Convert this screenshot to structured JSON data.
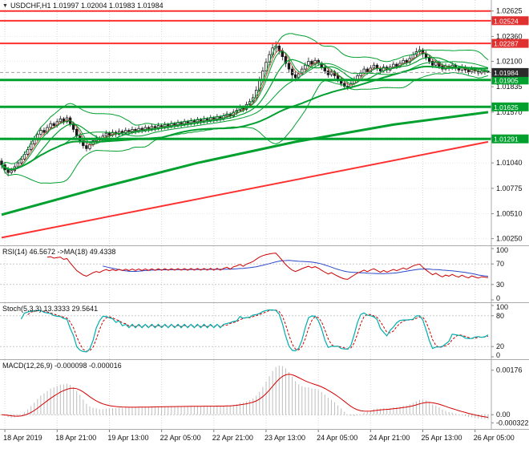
{
  "window": {
    "title": "USDCHF,H1 1.01997 1.02004 1.01983 1.01984",
    "dropdown_icon": "▼"
  },
  "colors": {
    "grid": "#D8D8D8",
    "border": "#ABABAB",
    "text": "#111111",
    "candle": "#1A1A1A",
    "bull_fill": "#FFFFFF",
    "bear_fill": "#1A1A1A",
    "ma_green": "#00A02E",
    "fast_red": "#C03A2B",
    "level_red": "#FF3030",
    "badge_red": "#E03030",
    "badge_green": "#00A02E",
    "badge_current": "#2B2B2B",
    "current_line": "#A0A0A0",
    "rsi_line": "#CC0000",
    "rsi_ma": "#2B48C8",
    "stoch_k": "#00AEAE",
    "stoch_d": "#CC0000",
    "macd_hist": "#BDBDBD",
    "macd_signal": "#D40000"
  },
  "time_axis": {
    "labels": [
      "18 Apr 2019",
      "18 Apr 21:00",
      "19 Apr 13:00",
      "22 Apr 05:00",
      "22 Apr 21:00",
      "23 Apr 13:00",
      "24 Apr 05:00",
      "24 Apr 21:00",
      "25 Apr 13:00",
      "26 Apr 05:00"
    ],
    "first_bar": 1,
    "bar_step": 16
  },
  "chart_data": {
    "type": "candlestick",
    "symbol": "USDCHF",
    "timeframe": "H1",
    "ohlc_display": {
      "open": "1.01997",
      "high": "1.02004",
      "low": "1.01983",
      "close": "1.01984"
    },
    "main": {
      "ylim": [
        1.0018,
        1.0274
      ],
      "grid_labels": [
        "1.02625",
        "1.02360",
        "1.02100",
        "1.01835",
        "1.01570",
        "1.01305",
        "1.01040",
        "1.00775",
        "1.00510",
        "1.00250"
      ],
      "current_price": 1.01984,
      "hlines": [
        {
          "value": 1.02625,
          "color": "#FF3030",
          "width": 2
        },
        {
          "value": 1.02524,
          "color": "#FF3030",
          "width": 2
        },
        {
          "value": 1.02287,
          "color": "#FF3030",
          "width": 2
        },
        {
          "value": 1.01905,
          "color": "#00A02E",
          "width": 3
        },
        {
          "value": 1.01625,
          "color": "#00A02E",
          "width": 3
        },
        {
          "value": 1.01291,
          "color": "#00A02E",
          "width": 3
        }
      ],
      "badges": [
        {
          "label": "1.02524",
          "color": "#E03030"
        },
        {
          "label": "1.02287",
          "color": "#E03030"
        },
        {
          "label": "1.01905",
          "color": "#00A02E"
        },
        {
          "label": "1.01625",
          "color": "#00A02E"
        },
        {
          "label": "1.01291",
          "color": "#00A02E"
        },
        {
          "label": "1.01984",
          "color": "#2B2B2B"
        }
      ],
      "trendlines": [
        {
          "name": "long-term-ma",
          "color": "#00A02E",
          "width": 3,
          "points": [
            [
              0,
              1.005
            ],
            [
              30,
              1.0078
            ],
            [
              60,
              1.0104
            ],
            [
              90,
              1.0126
            ],
            [
              120,
              1.0144
            ],
            [
              149,
              1.0157
            ]
          ]
        },
        {
          "name": "ascending-trendline",
          "color": "#FF3030",
          "width": 2,
          "points": [
            [
              0,
              1.0026
            ],
            [
              149,
              1.0126
            ]
          ]
        }
      ],
      "overlays": {
        "sma_fast": [
          5,
          10
        ],
        "sma_slow": 50,
        "bollinger": [
          20,
          2
        ],
        "fast_red_sma": 4
      },
      "candles": [
        [
          1.0106,
          1.0109,
          1.0098,
          1.0102
        ],
        [
          1.0102,
          1.0105,
          1.0093,
          1.0097
        ],
        [
          1.0097,
          1.01,
          1.009,
          1.0094
        ],
        [
          1.0094,
          1.0099,
          1.0092,
          1.0096
        ],
        [
          1.0096,
          1.0103,
          1.0094,
          1.01
        ],
        [
          1.01,
          1.0107,
          1.0098,
          1.0104
        ],
        [
          1.0104,
          1.0111,
          1.0102,
          1.0108
        ],
        [
          1.0108,
          1.0116,
          1.0106,
          1.0113
        ],
        [
          1.0113,
          1.0121,
          1.0111,
          1.0118
        ],
        [
          1.0118,
          1.0127,
          1.0116,
          1.0124
        ],
        [
          1.0124,
          1.0132,
          1.0122,
          1.0129
        ],
        [
          1.0129,
          1.0137,
          1.0127,
          1.0134
        ],
        [
          1.0134,
          1.0141,
          1.0132,
          1.0138
        ],
        [
          1.0138,
          1.0141,
          1.0133,
          1.0136
        ],
        [
          1.0136,
          1.0144,
          1.0134,
          1.0141
        ],
        [
          1.0141,
          1.0148,
          1.0139,
          1.0145
        ],
        [
          1.0145,
          1.0147,
          1.014,
          1.0143
        ],
        [
          1.0143,
          1.015,
          1.0141,
          1.0147
        ],
        [
          1.0147,
          1.0153,
          1.0145,
          1.015
        ],
        [
          1.015,
          1.0152,
          1.0144,
          1.0147
        ],
        [
          1.0147,
          1.0154,
          1.0145,
          1.0151
        ],
        [
          1.0151,
          1.0153,
          1.0142,
          1.0145
        ],
        [
          1.0145,
          1.0147,
          1.0136,
          1.0139
        ],
        [
          1.0139,
          1.0141,
          1.0129,
          1.0132
        ],
        [
          1.0132,
          1.0135,
          1.0124,
          1.0127
        ],
        [
          1.0127,
          1.013,
          1.0119,
          1.0122
        ],
        [
          1.0122,
          1.0125,
          1.0116,
          1.0119
        ],
        [
          1.0119,
          1.0126,
          1.0117,
          1.0123
        ],
        [
          1.0123,
          1.013,
          1.0121,
          1.0127
        ],
        [
          1.0127,
          1.0133,
          1.0125,
          1.013
        ],
        [
          1.013,
          1.0132,
          1.0125,
          1.0128
        ],
        [
          1.0128,
          1.0135,
          1.0126,
          1.0132
        ],
        [
          1.0132,
          1.0138,
          1.013,
          1.0135
        ],
        [
          1.0135,
          1.0137,
          1.013,
          1.0133
        ],
        [
          1.0133,
          1.0139,
          1.0131,
          1.0136
        ],
        [
          1.0136,
          1.0138,
          1.0131,
          1.0134
        ],
        [
          1.0134,
          1.014,
          1.0132,
          1.0137
        ],
        [
          1.0137,
          1.0139,
          1.0132,
          1.0135
        ],
        [
          1.0135,
          1.0141,
          1.0133,
          1.0138
        ],
        [
          1.0138,
          1.014,
          1.0133,
          1.0136
        ],
        [
          1.0136,
          1.0142,
          1.0134,
          1.0139
        ],
        [
          1.0139,
          1.0141,
          1.0134,
          1.0137
        ],
        [
          1.0137,
          1.0143,
          1.0135,
          1.014
        ],
        [
          1.014,
          1.0142,
          1.0135,
          1.0138
        ],
        [
          1.0138,
          1.0144,
          1.0136,
          1.0141
        ],
        [
          1.0141,
          1.0143,
          1.0136,
          1.0139
        ],
        [
          1.0139,
          1.0145,
          1.0137,
          1.0142
        ],
        [
          1.0142,
          1.0144,
          1.0137,
          1.014
        ],
        [
          1.014,
          1.0146,
          1.0138,
          1.0143
        ],
        [
          1.0143,
          1.0145,
          1.0138,
          1.0141
        ],
        [
          1.0141,
          1.0147,
          1.0139,
          1.0144
        ],
        [
          1.0144,
          1.0146,
          1.0139,
          1.0142
        ],
        [
          1.0142,
          1.0148,
          1.014,
          1.0145
        ],
        [
          1.0145,
          1.0147,
          1.014,
          1.0143
        ],
        [
          1.0143,
          1.0149,
          1.0141,
          1.0146
        ],
        [
          1.0146,
          1.0148,
          1.0141,
          1.0144
        ],
        [
          1.0144,
          1.015,
          1.0142,
          1.0147
        ],
        [
          1.0147,
          1.0149,
          1.0142,
          1.0145
        ],
        [
          1.0145,
          1.0151,
          1.0143,
          1.0148
        ],
        [
          1.0148,
          1.015,
          1.0143,
          1.0146
        ],
        [
          1.0146,
          1.0152,
          1.0144,
          1.0149
        ],
        [
          1.0149,
          1.0151,
          1.0144,
          1.0147
        ],
        [
          1.0147,
          1.0153,
          1.0145,
          1.015
        ],
        [
          1.015,
          1.0152,
          1.0145,
          1.0148
        ],
        [
          1.0148,
          1.0154,
          1.0146,
          1.0151
        ],
        [
          1.0151,
          1.0153,
          1.0146,
          1.0149
        ],
        [
          1.0149,
          1.0155,
          1.0147,
          1.0152
        ],
        [
          1.0152,
          1.0154,
          1.0147,
          1.015
        ],
        [
          1.015,
          1.0156,
          1.0148,
          1.0153
        ],
        [
          1.0153,
          1.0158,
          1.015,
          1.0155
        ],
        [
          1.0155,
          1.0157,
          1.015,
          1.0153
        ],
        [
          1.0153,
          1.016,
          1.0151,
          1.0157
        ],
        [
          1.0157,
          1.0162,
          1.0154,
          1.0159
        ],
        [
          1.0159,
          1.0165,
          1.0157,
          1.0162
        ],
        [
          1.0162,
          1.0164,
          1.0157,
          1.016
        ],
        [
          1.016,
          1.0168,
          1.0158,
          1.0165
        ],
        [
          1.0165,
          1.0171,
          1.0162,
          1.0168
        ],
        [
          1.0168,
          1.0176,
          1.0166,
          1.0172
        ],
        [
          1.0172,
          1.0184,
          1.017,
          1.018
        ],
        [
          1.018,
          1.0194,
          1.0178,
          1.019
        ],
        [
          1.019,
          1.0204,
          1.0188,
          1.02
        ],
        [
          1.02,
          1.0213,
          1.0197,
          1.0209
        ],
        [
          1.0209,
          1.0221,
          1.0206,
          1.0217
        ],
        [
          1.0217,
          1.0229,
          1.0214,
          1.0224
        ],
        [
          1.0224,
          1.0231,
          1.0219,
          1.0226
        ],
        [
          1.0226,
          1.0228,
          1.0217,
          1.0221
        ],
        [
          1.0221,
          1.0224,
          1.0211,
          1.0215
        ],
        [
          1.0215,
          1.0218,
          1.0204,
          1.0208
        ],
        [
          1.0208,
          1.0211,
          1.0198,
          1.0202
        ],
        [
          1.0202,
          1.0205,
          1.0192,
          1.0196
        ],
        [
          1.0196,
          1.02,
          1.0189,
          1.0193
        ],
        [
          1.0193,
          1.02,
          1.0191,
          1.0197
        ],
        [
          1.0197,
          1.0205,
          1.0195,
          1.0202
        ],
        [
          1.0202,
          1.0209,
          1.02,
          1.0206
        ],
        [
          1.0206,
          1.0214,
          1.0204,
          1.021
        ],
        [
          1.021,
          1.0212,
          1.0204,
          1.0207
        ],
        [
          1.0207,
          1.0214,
          1.0205,
          1.0211
        ],
        [
          1.0211,
          1.0213,
          1.0205,
          1.0208
        ],
        [
          1.0208,
          1.021,
          1.0201,
          1.0204
        ],
        [
          1.0204,
          1.0207,
          1.0197,
          1.02
        ],
        [
          1.02,
          1.0203,
          1.0193,
          1.0196
        ],
        [
          1.0196,
          1.0202,
          1.0194,
          1.0199
        ],
        [
          1.0199,
          1.0201,
          1.0192,
          1.0195
        ],
        [
          1.0195,
          1.0198,
          1.0188,
          1.0191
        ],
        [
          1.0191,
          1.0194,
          1.0184,
          1.0187
        ],
        [
          1.0187,
          1.019,
          1.0181,
          1.0184
        ],
        [
          1.0184,
          1.0188,
          1.018,
          1.0183
        ],
        [
          1.0183,
          1.019,
          1.0181,
          1.0187
        ],
        [
          1.0187,
          1.0194,
          1.0185,
          1.0191
        ],
        [
          1.0191,
          1.0198,
          1.0189,
          1.0195
        ],
        [
          1.0195,
          1.0201,
          1.0193,
          1.0198
        ],
        [
          1.0198,
          1.0205,
          1.0196,
          1.0202
        ],
        [
          1.0202,
          1.0204,
          1.0196,
          1.0199
        ],
        [
          1.0199,
          1.0206,
          1.0197,
          1.0203
        ],
        [
          1.0203,
          1.0209,
          1.0201,
          1.0206
        ],
        [
          1.0206,
          1.0208,
          1.02,
          1.0203
        ],
        [
          1.0203,
          1.0205,
          1.0197,
          1.02
        ],
        [
          1.02,
          1.0207,
          1.0198,
          1.0204
        ],
        [
          1.0204,
          1.0206,
          1.0198,
          1.0201
        ],
        [
          1.0201,
          1.0207,
          1.0199,
          1.0204
        ],
        [
          1.0204,
          1.021,
          1.0202,
          1.0207
        ],
        [
          1.0207,
          1.0209,
          1.0202,
          1.0205
        ],
        [
          1.0205,
          1.0211,
          1.0203,
          1.0208
        ],
        [
          1.0208,
          1.0214,
          1.0206,
          1.0211
        ],
        [
          1.0211,
          1.0213,
          1.0206,
          1.0209
        ],
        [
          1.0209,
          1.0216,
          1.0207,
          1.0213
        ],
        [
          1.0213,
          1.022,
          1.0211,
          1.0217
        ],
        [
          1.0217,
          1.0224,
          1.0215,
          1.022
        ],
        [
          1.022,
          1.0226,
          1.0217,
          1.0222
        ],
        [
          1.0222,
          1.0224,
          1.0214,
          1.0218
        ],
        [
          1.0218,
          1.0221,
          1.0211,
          1.0214
        ],
        [
          1.0214,
          1.0217,
          1.0207,
          1.021
        ],
        [
          1.021,
          1.0213,
          1.0203,
          1.0206
        ],
        [
          1.0206,
          1.0212,
          1.0204,
          1.0209
        ],
        [
          1.0209,
          1.0211,
          1.0202,
          1.0205
        ],
        [
          1.0205,
          1.0208,
          1.0199,
          1.0202
        ],
        [
          1.0202,
          1.0208,
          1.02,
          1.0205
        ],
        [
          1.0205,
          1.0207,
          1.02,
          1.0203
        ],
        [
          1.0203,
          1.0209,
          1.0201,
          1.0206
        ],
        [
          1.0206,
          1.0208,
          1.02,
          1.0203
        ],
        [
          1.0203,
          1.0205,
          1.0198,
          1.0201
        ],
        [
          1.0201,
          1.0207,
          1.0199,
          1.0204
        ],
        [
          1.0204,
          1.0206,
          1.0198,
          1.0201
        ],
        [
          1.0201,
          1.0203,
          1.0196,
          1.0199
        ],
        [
          1.0199,
          1.0205,
          1.0197,
          1.0202
        ],
        [
          1.0202,
          1.0204,
          1.0197,
          1.02
        ],
        [
          1.02,
          1.0202,
          1.0195,
          1.0198
        ],
        [
          1.0198,
          1.0203,
          1.0196,
          1.02
        ],
        [
          1.02,
          1.0202,
          1.0196,
          1.0199
        ],
        [
          1.01997,
          1.02004,
          1.01983,
          1.01984
        ]
      ]
    },
    "indicators": {
      "rsi": {
        "label": "RSI(14) 46.5672 ->MA(18) 49.4338",
        "period": 14,
        "ma_period": 18,
        "levels": [
          70,
          30
        ],
        "axis_labels": [
          "100",
          "70",
          "30",
          "0"
        ],
        "ylim": [
          0,
          100
        ]
      },
      "stoch": {
        "label": "Stoch(5,3,3) 13.3333 29.5641",
        "k": 5,
        "slowing": 3,
        "d": 3,
        "levels": [
          80,
          20
        ],
        "axis_labels": [
          "100",
          "80",
          "20",
          "0"
        ],
        "ylim": [
          0,
          100
        ]
      },
      "macd": {
        "label": "MACD(12,26,9) -0.000098 -0.000016",
        "fast": 12,
        "slow": 26,
        "signal": 9,
        "axis_labels": [
          "0.00176",
          "0.00",
          "-0.000322"
        ],
        "ylim": [
          -0.0005,
          0.0021
        ]
      }
    }
  }
}
